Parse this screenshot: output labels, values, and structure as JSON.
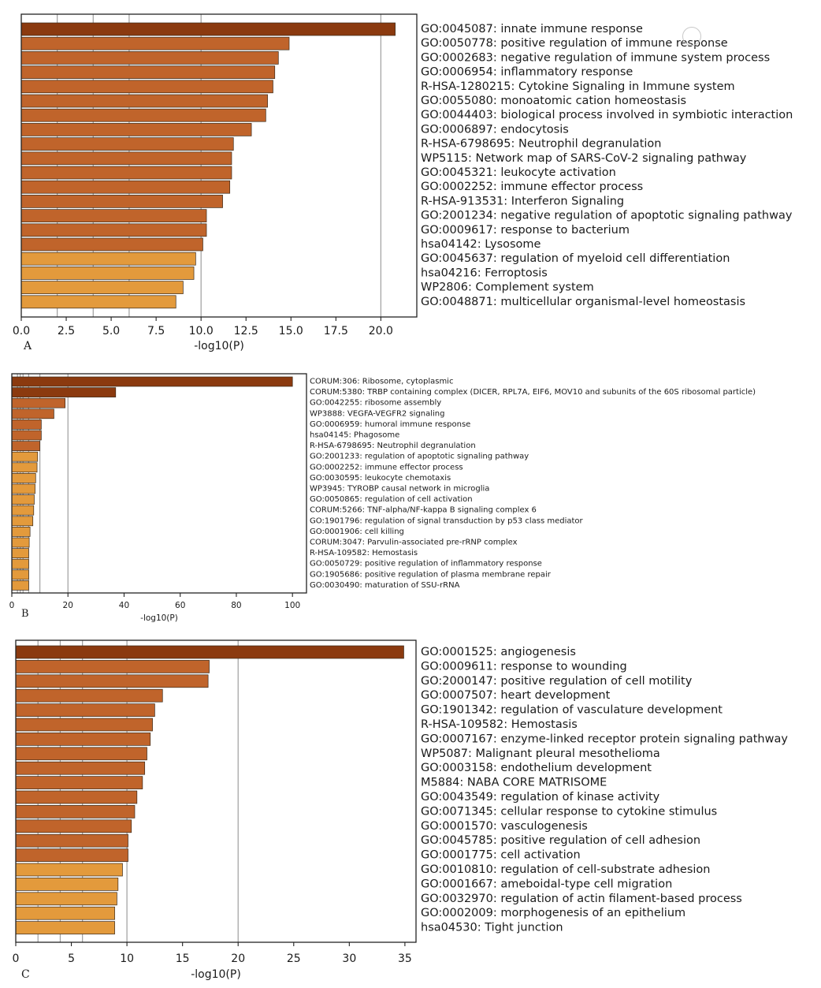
{
  "colors": {
    "dark": "#8b3a0f",
    "mid": "#c0642b",
    "light": "#e39a3c",
    "stroke": "#3a2a1a",
    "grid": "#9e9e9e"
  },
  "watermark": "",
  "chart_data": [
    {
      "type": "bar",
      "orientation": "horizontal",
      "panel": "A",
      "xlabel": "-log10(P)",
      "xlim": [
        0,
        22
      ],
      "xticks": [
        0.0,
        2.5,
        5.0,
        7.5,
        10.0,
        12.5,
        15.0,
        17.5,
        20.0
      ],
      "xtick_labels": [
        "0.0",
        "2.5",
        "5.0",
        "7.5",
        "10.0",
        "12.5",
        "15.0",
        "17.5",
        "20.0"
      ],
      "gridlines": [
        2,
        4,
        6,
        10,
        20
      ],
      "categories": [
        "GO:0045087: innate immune response",
        "GO:0050778: positive regulation of immune response",
        "GO:0002683: negative regulation of immune system process",
        "GO:0006954: inflammatory response",
        "R-HSA-1280215: Cytokine Signaling in Immune system",
        "GO:0055080: monoatomic cation homeostasis",
        "GO:0044403: biological process involved in symbiotic interaction",
        "GO:0006897: endocytosis",
        "R-HSA-6798695: Neutrophil degranulation",
        "WP5115: Network map of SARS-CoV-2 signaling pathway",
        "GO:0045321: leukocyte activation",
        "GO:0002252: immune effector process",
        "R-HSA-913531: Interferon Signaling",
        "GO:2001234: negative regulation of apoptotic signaling pathway",
        "GO:0009617: response to bacterium",
        "hsa04142: Lysosome",
        "GO:0045637: regulation of myeloid cell differentiation",
        "hsa04216: Ferroptosis",
        "WP2806: Complement system",
        "GO:0048871: multicellular organismal-level homeostasis"
      ],
      "values": [
        20.8,
        14.9,
        14.3,
        14.1,
        14.0,
        13.7,
        13.6,
        12.8,
        11.8,
        11.7,
        11.7,
        11.6,
        11.2,
        10.3,
        10.3,
        10.1,
        9.7,
        9.6,
        9.0,
        8.6
      ],
      "tones": [
        "dark",
        "mid",
        "mid",
        "mid",
        "mid",
        "mid",
        "mid",
        "mid",
        "mid",
        "mid",
        "mid",
        "mid",
        "mid",
        "mid",
        "mid",
        "mid",
        "light",
        "light",
        "light",
        "light"
      ]
    },
    {
      "type": "bar",
      "orientation": "horizontal",
      "panel": "B",
      "xlabel": "-log10(P)",
      "xlim": [
        0,
        105
      ],
      "xticks": [
        0,
        20,
        40,
        60,
        80,
        100
      ],
      "xtick_labels": [
        "0",
        "20",
        "40",
        "60",
        "80",
        "100"
      ],
      "gridlines": [
        2,
        3,
        4,
        6,
        10,
        20
      ],
      "categories": [
        "CORUM:306: Ribosome, cytoplasmic",
        "CORUM:5380: TRBP containing complex (DICER, RPL7A, EIF6, MOV10 and subunits of the 60S ribosomal particle)",
        "GO:0042255: ribosome assembly",
        "WP3888: VEGFA-VEGFR2 signaling",
        "GO:0006959: humoral immune response",
        "hsa04145: Phagosome",
        "R-HSA-6798695: Neutrophil degranulation",
        "GO:2001233: regulation of apoptotic signaling pathway",
        "GO:0002252: immune effector process",
        "GO:0030595: leukocyte chemotaxis",
        "WP3945: TYROBP causal network in microglia",
        "GO:0050865: regulation of cell activation",
        "CORUM:5266: TNF-alpha/NF-kappa B signaling complex 6",
        "GO:1901796: regulation of signal transduction by p53 class mediator",
        "GO:0001906: cell killing",
        "CORUM:3047: Parvulin-associated pre-rRNP complex",
        "R-HSA-109582: Hemostasis",
        "GO:0050729: positive regulation of inflammatory response",
        "GO:1905686: positive regulation of plasma membrane repair",
        "GO:0030490: maturation of SSU-rRNA"
      ],
      "values": [
        100,
        37,
        19,
        15,
        10.5,
        10.5,
        10,
        9.2,
        9,
        8.5,
        8.3,
        8,
        7.8,
        7.5,
        6.5,
        6.2,
        6.0,
        6.0,
        6.0,
        6.0
      ],
      "tones": [
        "dark",
        "dark",
        "mid",
        "mid",
        "mid",
        "mid",
        "mid",
        "light",
        "light",
        "light",
        "light",
        "light",
        "light",
        "light",
        "light",
        "light",
        "light",
        "light",
        "light",
        "light"
      ]
    },
    {
      "type": "bar",
      "orientation": "horizontal",
      "panel": "C",
      "xlabel": "-log10(P)",
      "xlim": [
        0,
        36
      ],
      "xticks": [
        0,
        5,
        10,
        15,
        20,
        25,
        30,
        35
      ],
      "xtick_labels": [
        "0",
        "5",
        "10",
        "15",
        "20",
        "25",
        "30",
        "35"
      ],
      "gridlines": [
        2,
        4,
        6,
        10,
        20
      ],
      "categories": [
        "GO:0001525: angiogenesis",
        "GO:0009611: response to wounding",
        "GO:2000147: positive regulation of cell motility",
        "GO:0007507: heart development",
        "GO:1901342: regulation of vasculature development",
        "R-HSA-109582: Hemostasis",
        "GO:0007167: enzyme-linked receptor protein signaling pathway",
        "WP5087: Malignant pleural mesothelioma",
        "GO:0003158: endothelium development",
        "M5884: NABA CORE MATRISOME",
        "GO:0043549: regulation of kinase activity",
        "GO:0071345: cellular response to cytokine stimulus",
        "GO:0001570: vasculogenesis",
        "GO:0045785: positive regulation of cell adhesion",
        "GO:0001775: cell activation",
        "GO:0010810: regulation of cell-substrate adhesion",
        "GO:0001667: ameboidal-type cell migration",
        "GO:0032970: regulation of actin filament-based process",
        "GO:0002009: morphogenesis of an epithelium",
        "hsa04530: Tight junction"
      ],
      "values": [
        34.9,
        17.4,
        17.3,
        13.2,
        12.5,
        12.3,
        12.1,
        11.8,
        11.6,
        11.4,
        10.9,
        10.7,
        10.4,
        10.1,
        10.1,
        9.6,
        9.2,
        9.1,
        8.9,
        8.9
      ],
      "tones": [
        "dark",
        "mid",
        "mid",
        "mid",
        "mid",
        "mid",
        "mid",
        "mid",
        "mid",
        "mid",
        "mid",
        "mid",
        "mid",
        "mid",
        "mid",
        "light",
        "light",
        "light",
        "light",
        "light"
      ]
    }
  ]
}
